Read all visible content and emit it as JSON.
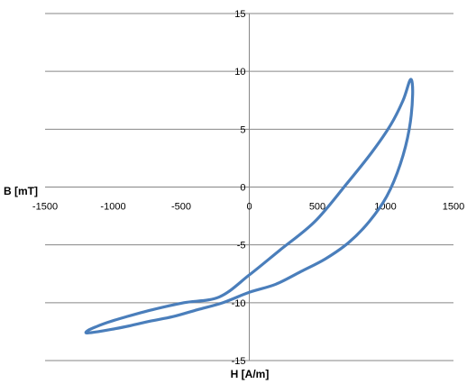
{
  "chart_data": {
    "type": "line",
    "title": "",
    "xlabel": "H [A/m]",
    "ylabel": "B [mT]",
    "xlim": [
      -1500,
      1500
    ],
    "ylim": [
      -15,
      15
    ],
    "x_ticks": [
      -1500,
      -1000,
      -500,
      0,
      500,
      1000,
      1500
    ],
    "y_ticks": [
      -15,
      -10,
      -5,
      0,
      5,
      10,
      15
    ],
    "x_tick_labels": [
      "-1500",
      "-1000",
      "-500",
      "0",
      "500",
      "1000",
      "1500"
    ],
    "y_tick_labels": [
      "-15",
      "-10",
      "-5",
      "0",
      "5",
      "10",
      "15"
    ],
    "grid": {
      "horizontal": true,
      "vertical": false
    },
    "legend": "none",
    "color": "#4a7ebb",
    "series": [
      {
        "x": [
          1200,
          1175,
          1110,
          1010,
          880,
          730,
          560,
          380,
          195,
          0,
          -195,
          -380,
          -560,
          -730,
          -880,
          -1010,
          -1110,
          -1175,
          -1200,
          -1185,
          -1130,
          -1040,
          -900,
          -710,
          -480,
          -220,
          0,
          220,
          480,
          710,
          900,
          1040,
          1130,
          1185,
          1200
        ],
        "y": [
          8.0,
          5.0,
          2.0,
          -0.8,
          -3.0,
          -4.8,
          -6.2,
          -7.3,
          -8.4,
          -9.1,
          -10.0,
          -10.6,
          -11.2,
          -11.6,
          -12.0,
          -12.3,
          -12.5,
          -12.6,
          -12.6,
          -12.4,
          -12.1,
          -11.7,
          -11.2,
          -10.6,
          -10.0,
          -9.5,
          -7.6,
          -5.5,
          -3.0,
          0.2,
          3.0,
          5.4,
          7.5,
          9.3,
          8.0
        ]
      }
    ]
  }
}
